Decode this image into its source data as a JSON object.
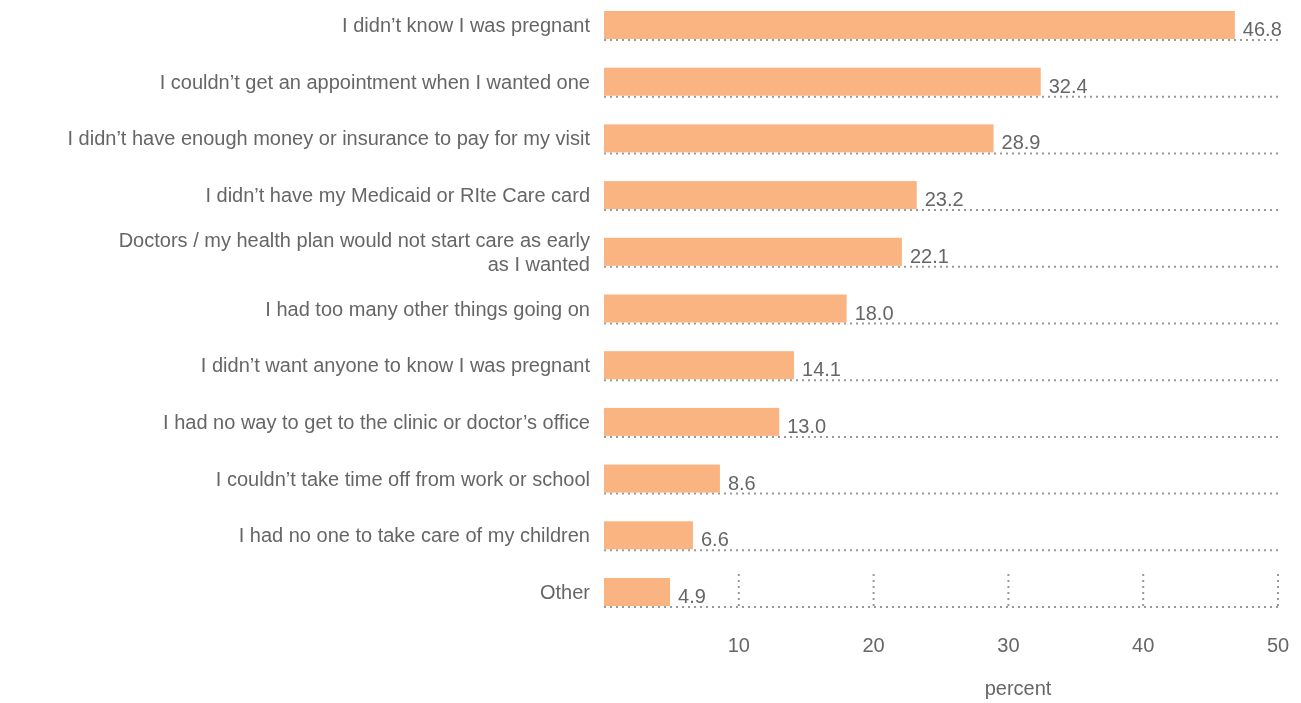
{
  "chart_data": {
    "type": "bar",
    "orientation": "horizontal",
    "xlabel": "percent",
    "categories": [
      "I didn’t know I was pregnant",
      "I couldn’t get an appointment when I wanted one",
      "I didn’t have enough money or insurance to pay for my visit",
      "I didn’t have my Medicaid or RIte Care card",
      "Doctors / my health plan would not start care as early\nas I wanted",
      "I had too many other things going on",
      "I didn’t want anyone to know I was pregnant",
      "I had no way to get to the clinic or doctor’s office",
      "I couldn’t take time off from work or school",
      "I had no one to take care of my children",
      "Other"
    ],
    "values": [
      46.8,
      32.4,
      28.9,
      23.2,
      22.1,
      18.0,
      14.1,
      13.0,
      8.6,
      6.6,
      4.9
    ],
    "value_labels": [
      "46.8",
      "32.4",
      "28.9",
      "23.2",
      "22.1",
      "18.0",
      "14.1",
      "13.0",
      "8.6",
      "6.6",
      "4.9"
    ],
    "color": "#f9b482",
    "xlim": [
      0,
      50
    ],
    "xticks": [
      10,
      20,
      30,
      40,
      50
    ],
    "grid": true
  }
}
